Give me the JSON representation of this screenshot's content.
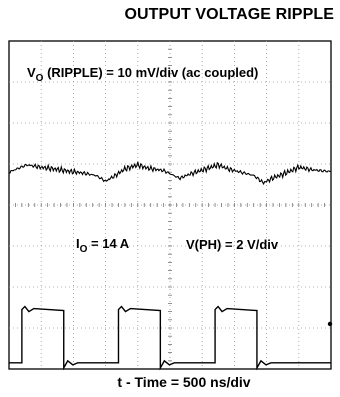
{
  "chart_data": {
    "type": "line",
    "title": "OUTPUT VOLTAGE RIPPLE",
    "xlabel": "t - Time = 500 ns/div",
    "grid": true,
    "x_divisions": 10,
    "y_divisions": 8,
    "annotations": {
      "ripple_scale_main": "V",
      "ripple_scale_sub": "O",
      "ripple_scale_rest": " (RIPPLE) = 10 mV/div (ac coupled)",
      "current_main": "I",
      "current_sub": "O",
      "current_rest": " = 14 A",
      "ph_scale": "V(PH) = 2 V/div"
    },
    "series": [
      {
        "name": "",
        "unit": "div",
        "x": [
          0,
          0.55,
          1.0,
          1.4,
          1.9,
          2.3,
          2.7,
          3.0,
          3.3,
          3.6,
          4.0,
          4.3,
          4.8,
          5.3,
          5.6,
          6.0,
          6.5,
          6.8,
          7.2,
          7.6,
          7.9,
          8.2,
          8.6,
          9.0,
          9.4,
          9.9
        ],
        "values": [
          3.2,
          3.02,
          3.08,
          3.12,
          3.18,
          3.22,
          3.28,
          3.42,
          3.28,
          3.12,
          3.02,
          3.1,
          3.16,
          3.35,
          3.25,
          3.15,
          3.02,
          3.12,
          3.2,
          3.28,
          3.46,
          3.34,
          3.22,
          3.08,
          3.14,
          3.18
        ]
      },
      {
        "name": "",
        "unit": "div",
        "high_level": 6.55,
        "low_level": 7.85,
        "rise_x": [
          0.4,
          3.4,
          6.4
        ],
        "fall_x": [
          1.7,
          4.7,
          7.7
        ]
      }
    ]
  }
}
